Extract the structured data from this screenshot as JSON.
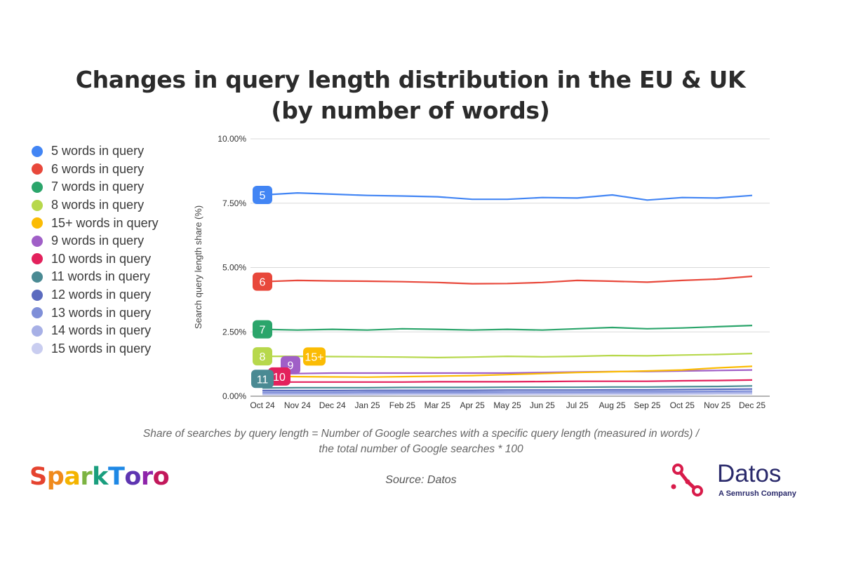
{
  "title_line1": "Changes in query length distribution in the EU & UK",
  "title_line2": "(by number of words)",
  "footnote_line1": "Share of searches by query length = Number of Google searches with a specific query length (measured in words) /",
  "footnote_line2": "the total number of Google searches * 100",
  "source": "Source: Datos",
  "brand_left": "SparkToro",
  "brand_left_colors": [
    "#e5432f",
    "#f08a1c",
    "#f4b400",
    "#7cb342",
    "#1a9e7e",
    "#1e88e5",
    "#5e35b1",
    "#8e24aa",
    "#c2185b"
  ],
  "brand_right": "Datos",
  "brand_right_tagline": "A Semrush Company",
  "brand_right_color": "#d81b4a",
  "chart_data": {
    "type": "line",
    "title": "Changes in query length distribution in the EU & UK (by number of words)",
    "xlabel": "",
    "ylabel": "Search query length share (%)",
    "ylim": [
      0,
      10
    ],
    "yticks": [
      "0.00%",
      "2.50%",
      "5.00%",
      "7.50%",
      "10.00%"
    ],
    "ytick_values": [
      0,
      2.5,
      5,
      7.5,
      10
    ],
    "grid": true,
    "legend_position": "left",
    "categories": [
      "Oct 24",
      "Nov 24",
      "Dec 24",
      "Jan 25",
      "Feb 25",
      "Mar 25",
      "Apr 25",
      "May 25",
      "Jun 25",
      "Jul 25",
      "Aug 25",
      "Sep 25",
      "Oct 25",
      "Nov 25",
      "Dec 25"
    ],
    "series": [
      {
        "name": "5 words in query",
        "badge": "5",
        "color": "#4285f4",
        "values": [
          7.82,
          7.9,
          7.85,
          7.8,
          7.78,
          7.75,
          7.65,
          7.65,
          7.72,
          7.7,
          7.82,
          7.62,
          7.72,
          7.7,
          7.8
        ]
      },
      {
        "name": "6 words in query",
        "badge": "6",
        "color": "#e8483b",
        "values": [
          4.45,
          4.5,
          4.48,
          4.47,
          4.45,
          4.42,
          4.37,
          4.38,
          4.42,
          4.5,
          4.47,
          4.43,
          4.5,
          4.55,
          4.66
        ]
      },
      {
        "name": "7 words in query",
        "badge": "7",
        "color": "#2ba56b",
        "values": [
          2.6,
          2.57,
          2.6,
          2.57,
          2.62,
          2.6,
          2.57,
          2.6,
          2.57,
          2.62,
          2.67,
          2.62,
          2.65,
          2.7,
          2.75
        ]
      },
      {
        "name": "8 words in query",
        "badge": "8",
        "color": "#b7d84c",
        "values": [
          1.55,
          1.55,
          1.54,
          1.53,
          1.52,
          1.5,
          1.52,
          1.55,
          1.53,
          1.55,
          1.58,
          1.57,
          1.6,
          1.62,
          1.66
        ]
      },
      {
        "name": "15+ words in query",
        "badge": "15+",
        "color": "#fbbc04",
        "values": [
          0.78,
          0.76,
          0.75,
          0.74,
          0.76,
          0.78,
          0.8,
          0.84,
          0.88,
          0.92,
          0.95,
          0.98,
          1.02,
          1.1,
          1.16
        ]
      },
      {
        "name": "9 words in query",
        "badge": "9",
        "color": "#a05fc7",
        "values": [
          0.88,
          0.88,
          0.9,
          0.9,
          0.9,
          0.9,
          0.9,
          0.9,
          0.92,
          0.94,
          0.96,
          0.96,
          0.98,
          1.0,
          1.02
        ]
      },
      {
        "name": "10 words in query",
        "badge": "10",
        "color": "#e3215c",
        "values": [
          0.55,
          0.55,
          0.55,
          0.55,
          0.55,
          0.56,
          0.56,
          0.56,
          0.57,
          0.58,
          0.58,
          0.58,
          0.6,
          0.61,
          0.63
        ]
      },
      {
        "name": "11 words in query",
        "badge": "11",
        "color": "#4a8a93",
        "values": [
          0.32,
          0.33,
          0.33,
          0.33,
          0.34,
          0.34,
          0.34,
          0.35,
          0.35,
          0.35,
          0.36,
          0.36,
          0.37,
          0.38,
          0.4
        ]
      },
      {
        "name": "12 words in query",
        "badge": "",
        "color": "#5b6bbf",
        "values": [
          0.22,
          0.22,
          0.22,
          0.23,
          0.23,
          0.23,
          0.23,
          0.24,
          0.24,
          0.24,
          0.25,
          0.25,
          0.26,
          0.27,
          0.28
        ]
      },
      {
        "name": "13 words in query",
        "badge": "",
        "color": "#7f8fd8",
        "values": [
          0.15,
          0.15,
          0.15,
          0.16,
          0.16,
          0.16,
          0.16,
          0.17,
          0.17,
          0.17,
          0.18,
          0.18,
          0.18,
          0.19,
          0.2
        ]
      },
      {
        "name": "14 words in query",
        "badge": "",
        "color": "#a7b0e6",
        "values": [
          0.1,
          0.1,
          0.1,
          0.1,
          0.11,
          0.11,
          0.11,
          0.11,
          0.12,
          0.12,
          0.12,
          0.12,
          0.13,
          0.13,
          0.14
        ]
      },
      {
        "name": "15 words in query",
        "badge": "",
        "color": "#c9cdf0",
        "values": [
          0.06,
          0.06,
          0.06,
          0.06,
          0.07,
          0.07,
          0.07,
          0.07,
          0.07,
          0.08,
          0.08,
          0.08,
          0.08,
          0.09,
          0.09
        ]
      }
    ]
  }
}
